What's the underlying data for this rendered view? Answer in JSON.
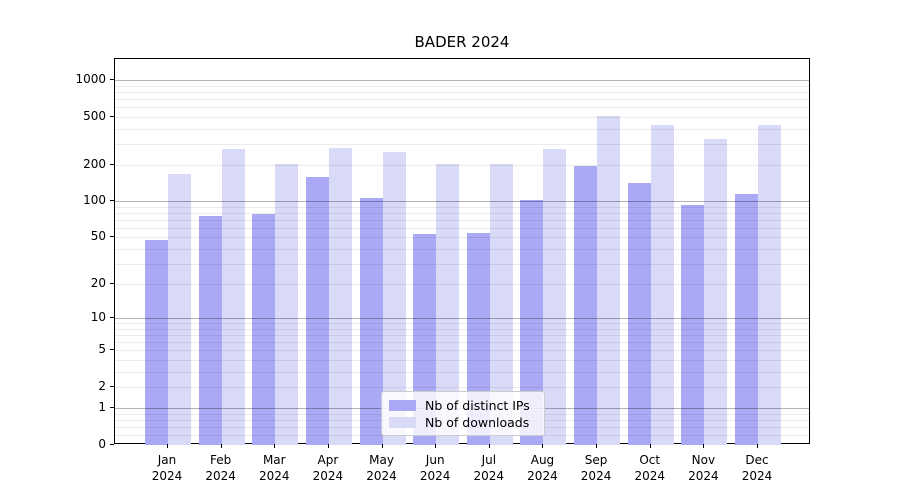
{
  "chart_data": {
    "type": "bar",
    "title": "BADER 2024",
    "categories": [
      "Jan",
      "Feb",
      "Mar",
      "Apr",
      "May",
      "Jun",
      "Jul",
      "Aug",
      "Sep",
      "Oct",
      "Nov",
      "Dec"
    ],
    "category_year": "2024",
    "series": [
      {
        "name": "Nb of distinct IPs",
        "color": "#a9a9f6",
        "values": [
          48,
          76,
          78,
          160,
          107,
          54,
          55,
          103,
          198,
          143,
          93,
          116
        ]
      },
      {
        "name": "Nb of downloads",
        "color": "#d9d9f8",
        "values": [
          170,
          270,
          205,
          275,
          255,
          205,
          206,
          272,
          505,
          430,
          330,
          430
        ]
      }
    ],
    "yscale": "log1p",
    "yticks": [
      0,
      1,
      2,
      5,
      10,
      20,
      50,
      100,
      200,
      500,
      1000
    ],
    "ytick_labels": [
      "0",
      "1",
      "2",
      "5",
      "10",
      "20",
      "50",
      "100",
      "200",
      "500",
      "1000"
    ],
    "ylim": [
      0,
      1500
    ],
    "grid": true,
    "legend_position": "lower-center",
    "colors": {
      "axis": "#000000",
      "grid_major": "#b3b3b3",
      "grid_minor": "#ebebeb",
      "background": "#ffffff"
    }
  }
}
